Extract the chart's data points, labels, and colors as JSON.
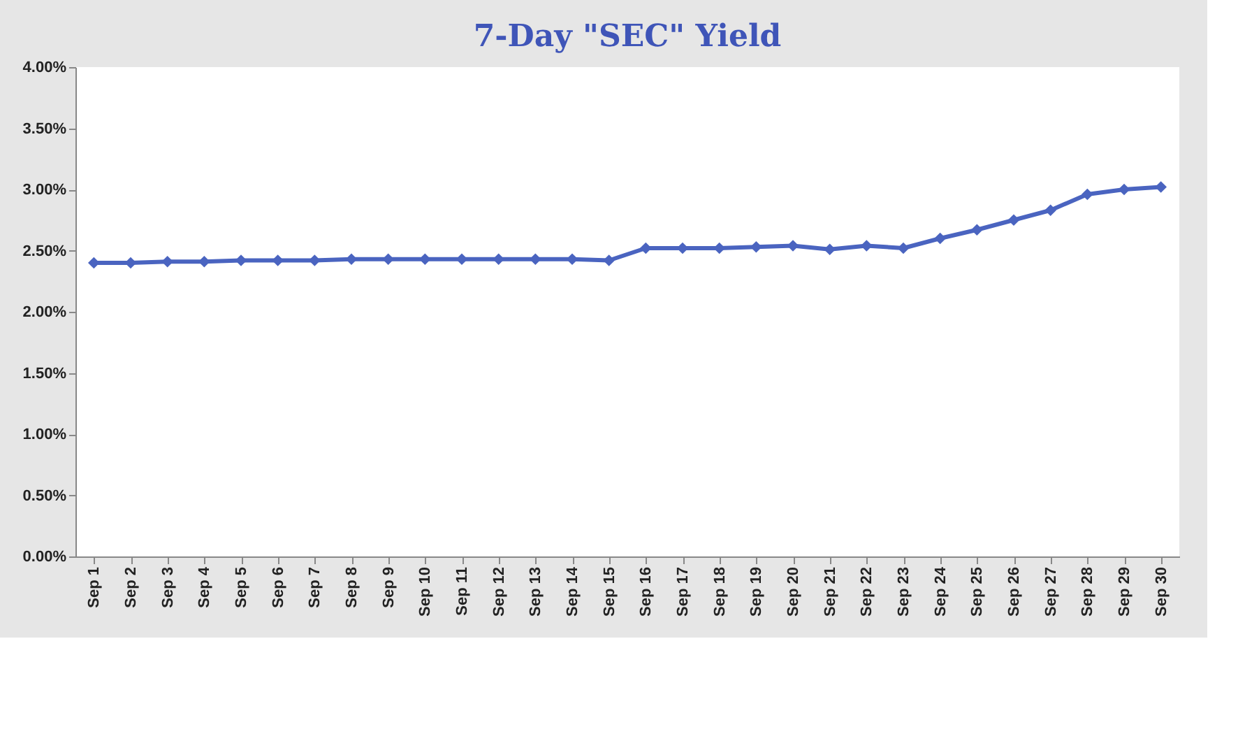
{
  "chart_data": {
    "type": "line",
    "title": "7-Day \"SEC\" Yield",
    "categories": [
      "Sep 1",
      "Sep 2",
      "Sep 3",
      "Sep 4",
      "Sep 5",
      "Sep 6",
      "Sep 7",
      "Sep 8",
      "Sep 9",
      "Sep 10",
      "Sep 11",
      "Sep 12",
      "Sep 13",
      "Sep 14",
      "Sep 15",
      "Sep 16",
      "Sep 17",
      "Sep 18",
      "Sep 19",
      "Sep 20",
      "Sep 21",
      "Sep 22",
      "Sep 23",
      "Sep 24",
      "Sep 25",
      "Sep 26",
      "Sep 27",
      "Sep 28",
      "Sep 29",
      "Sep 30"
    ],
    "series": [
      {
        "color": "#4a64c0",
        "values": [
          2.4,
          2.4,
          2.41,
          2.41,
          2.42,
          2.42,
          2.42,
          2.43,
          2.43,
          2.43,
          2.43,
          2.43,
          2.43,
          2.43,
          2.42,
          2.52,
          2.52,
          2.52,
          2.53,
          2.54,
          2.51,
          2.54,
          2.52,
          2.6,
          2.67,
          2.75,
          2.83,
          2.96,
          3.0,
          3.02
        ]
      }
    ],
    "ylim": [
      0,
      4
    ],
    "yticks": [
      {
        "value": 0,
        "label": "0.00%"
      },
      {
        "value": 0.5,
        "label": "0.50%"
      },
      {
        "value": 1,
        "label": "1.00%"
      },
      {
        "value": 1.5,
        "label": "1.50%"
      },
      {
        "value": 2,
        "label": "2.00%"
      },
      {
        "value": 2.5,
        "label": "2.50%"
      },
      {
        "value": 3,
        "label": "3.00%"
      },
      {
        "value": 3.5,
        "label": "3.50%"
      },
      {
        "value": 4,
        "label": "4.00%"
      }
    ],
    "grid": false,
    "marker": "diamond",
    "line_style": "solid"
  }
}
